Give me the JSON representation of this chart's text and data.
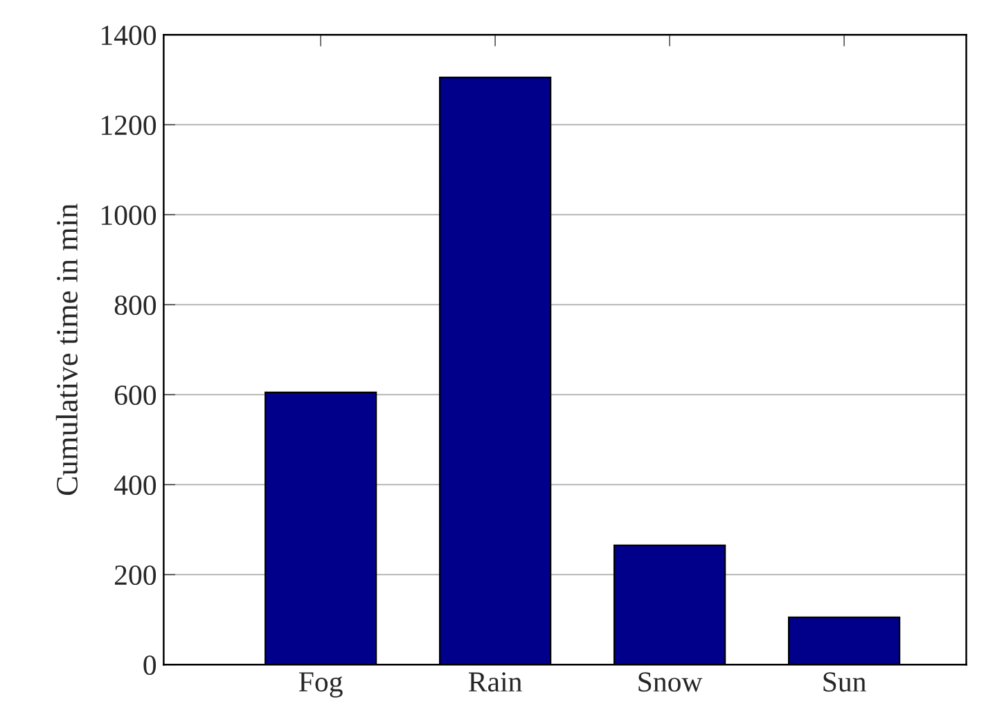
{
  "chart_data": {
    "type": "bar",
    "ylabel": "Cumulative time in min",
    "categories": [
      "Fog",
      "Rain",
      "Snow",
      "Sun"
    ],
    "series": [
      {
        "color": "#00008b",
        "values": [
          605,
          1305,
          265,
          105
        ]
      }
    ],
    "ylim": [
      0,
      1400
    ],
    "yticks": [
      0,
      200,
      400,
      600,
      800,
      1000,
      1200,
      1400
    ],
    "grid": "y"
  }
}
